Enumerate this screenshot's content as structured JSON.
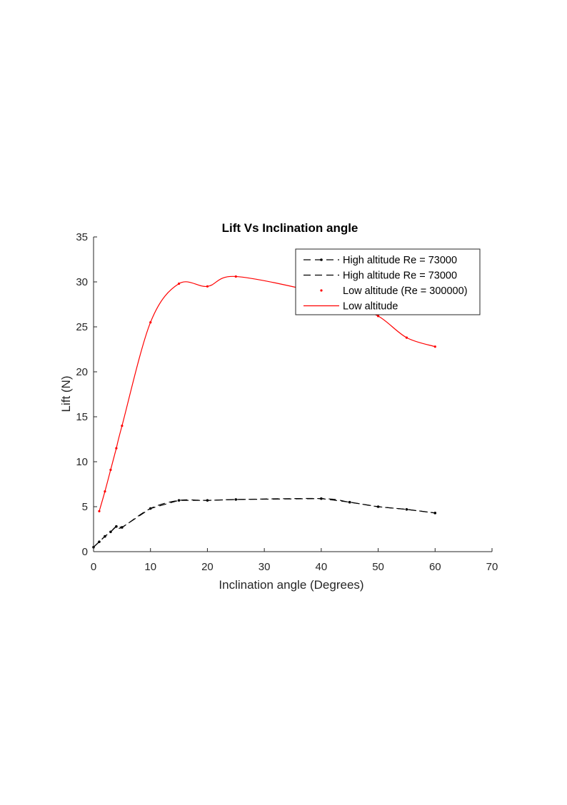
{
  "chart_data": {
    "type": "line",
    "title": "Lift Vs Inclination angle",
    "xlabel": "Inclination angle (Degrees)",
    "ylabel": "Lift (N)",
    "xlim": [
      0,
      70
    ],
    "ylim": [
      0,
      35
    ],
    "xticks": [
      "0",
      "10",
      "20",
      "30",
      "40",
      "50",
      "60",
      "70"
    ],
    "yticks": [
      "0",
      "5",
      "10",
      "15",
      "20",
      "25",
      "30",
      "35"
    ],
    "grid": false,
    "legend_position": "top-right",
    "series": [
      {
        "name": "High altitude Re = 73000",
        "style": "dashed-markers",
        "color": "#000000",
        "x": [
          0,
          1,
          2,
          3,
          4,
          5,
          10,
          15,
          20,
          25,
          40,
          45,
          50,
          55,
          60
        ],
        "y": [
          0.5,
          1.1,
          1.7,
          2.2,
          2.8,
          2.7,
          4.8,
          5.7,
          5.7,
          5.8,
          5.9,
          5.5,
          5.0,
          4.7,
          4.3
        ]
      },
      {
        "name": "High altitude Re = 73000",
        "style": "dashed-smooth",
        "color": "#000000",
        "x": [
          0,
          1,
          2,
          3,
          4,
          5,
          10,
          15,
          20,
          25,
          40,
          45,
          50,
          55,
          60
        ],
        "y": [
          0.5,
          1.1,
          1.7,
          2.2,
          2.8,
          2.7,
          4.8,
          5.7,
          5.7,
          5.8,
          5.9,
          5.5,
          5.0,
          4.7,
          4.3
        ]
      },
      {
        "name": "Low altitude (Re = 300000)",
        "style": "markers",
        "color": "#ff0000",
        "x": [
          1,
          2,
          3,
          4,
          5,
          10,
          15,
          20,
          25,
          40,
          45,
          50,
          55,
          60
        ],
        "y": [
          4.5,
          6.7,
          9.1,
          11.5,
          14.0,
          25.5,
          29.8,
          29.5,
          30.6,
          28.7,
          27.2,
          26.2,
          23.8,
          22.8
        ]
      },
      {
        "name": "Low altitude",
        "style": "smooth",
        "color": "#ff0000",
        "x": [
          1,
          2,
          3,
          4,
          5,
          10,
          15,
          20,
          25,
          40,
          45,
          50,
          55,
          60
        ],
        "y": [
          4.5,
          6.7,
          9.1,
          11.5,
          14.0,
          25.5,
          29.8,
          29.5,
          30.6,
          28.7,
          27.2,
          26.2,
          23.8,
          22.8
        ]
      }
    ]
  }
}
